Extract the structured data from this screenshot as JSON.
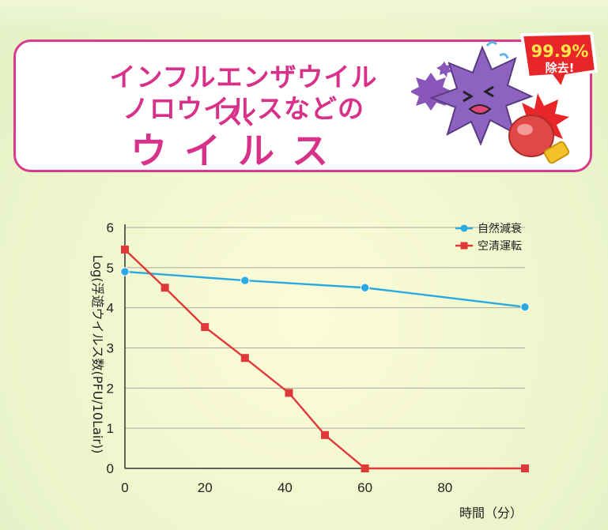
{
  "banner": {
    "line1": "インフルエンザウイルス、",
    "line2": "ノロウイルスなどの",
    "emphasis": "ウイルス",
    "badge_percent": "99.9%",
    "badge_label": "除去!"
  },
  "chart_data": {
    "type": "line",
    "title": "",
    "xlabel": "時間（分）",
    "ylabel": "Log(浮遊ウイルス数(PFU/10Lair))",
    "xlim": [
      0,
      100
    ],
    "ylim": [
      0,
      6
    ],
    "xticks": [
      0,
      20,
      40,
      60,
      80
    ],
    "yticks": [
      0,
      1,
      2,
      3,
      4,
      5,
      6
    ],
    "grid": true,
    "legend_position": "top-right",
    "series": [
      {
        "name": "自然減衰",
        "color": "#2aa9e0",
        "marker": "circle",
        "points": [
          [
            0,
            4.9
          ],
          [
            30,
            4.68
          ],
          [
            60,
            4.5
          ],
          [
            100,
            4.02
          ]
        ]
      },
      {
        "name": "空清運転",
        "color": "#e03838",
        "marker": "square",
        "points": [
          [
            0,
            5.45
          ],
          [
            10,
            4.5
          ],
          [
            20,
            3.52
          ],
          [
            30,
            2.75
          ],
          [
            41,
            1.88
          ],
          [
            50,
            0.83
          ],
          [
            60,
            0.0
          ],
          [
            100,
            0.0
          ]
        ]
      }
    ]
  }
}
